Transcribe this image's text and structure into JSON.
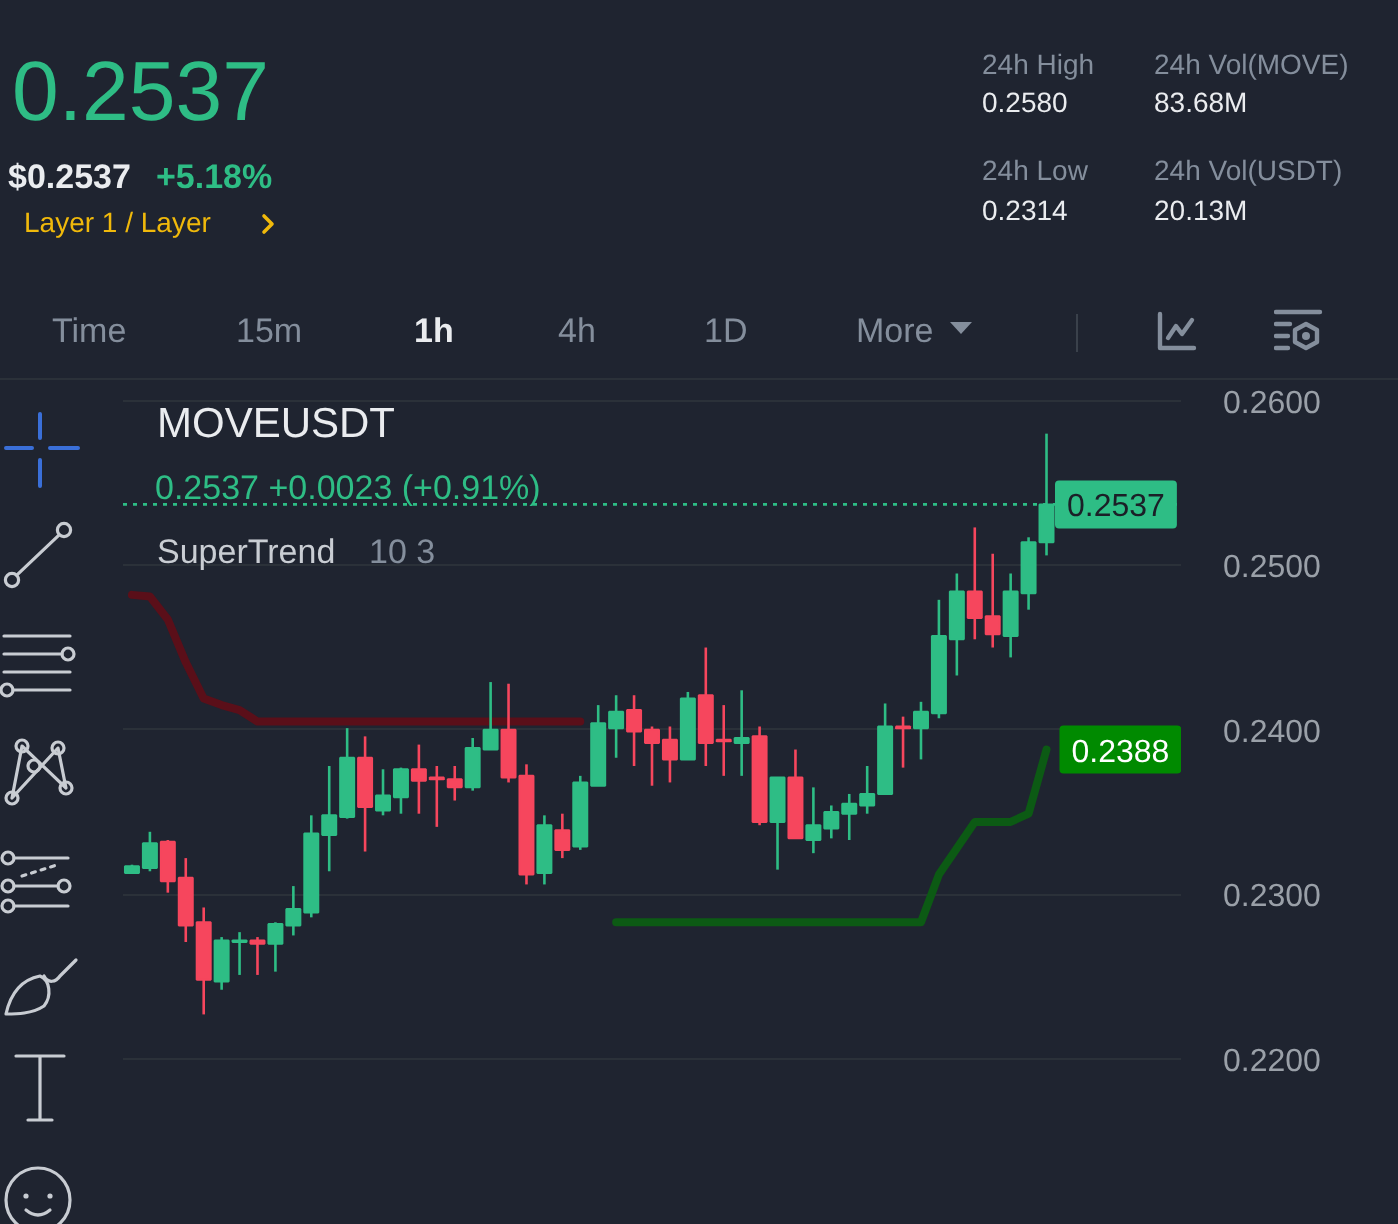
{
  "chart_data": {
    "type": "candlestick",
    "title": "MOVEUSDT",
    "subtitle": "0.2537 +0.0023 (+0.91%)",
    "categories": [
      null,
      null,
      null,
      null,
      null,
      null,
      null,
      null,
      null,
      null,
      null,
      null,
      null,
      null,
      null,
      null,
      null,
      null,
      null,
      null,
      null,
      null,
      null,
      null,
      null,
      null,
      null,
      null,
      null,
      null,
      null,
      null,
      null,
      null,
      null,
      null,
      null,
      null,
      null,
      null,
      null,
      null,
      null,
      null,
      null,
      null,
      null,
      null,
      null,
      null,
      null,
      null,
      null,
      null,
      null,
      null,
      null,
      null,
      null
    ],
    "ohlc": [
      [
        0.2313,
        0.2318,
        0.2313,
        0.2317
      ],
      [
        0.2316,
        0.2338,
        0.2314,
        0.2331
      ],
      [
        0.2332,
        0.2333,
        0.2301,
        0.2308
      ],
      [
        0.231,
        0.2322,
        0.2271,
        0.2281
      ],
      [
        0.2283,
        0.2292,
        0.2227,
        0.2248
      ],
      [
        0.2247,
        0.2274,
        0.2242,
        0.2272
      ],
      [
        0.2271,
        0.2277,
        0.2251,
        0.2272
      ],
      [
        0.2272,
        0.2274,
        0.2251,
        0.227
      ],
      [
        0.227,
        0.2283,
        0.2253,
        0.2282
      ],
      [
        0.2281,
        0.2305,
        0.2275,
        0.2291
      ],
      [
        0.2289,
        0.2348,
        0.2286,
        0.2337
      ],
      [
        0.2336,
        0.2378,
        0.2314,
        0.2348
      ],
      [
        0.2347,
        0.2401,
        0.2346,
        0.2383
      ],
      [
        0.2383,
        0.2396,
        0.2326,
        0.2353
      ],
      [
        0.2351,
        0.2376,
        0.2348,
        0.236
      ],
      [
        0.2359,
        0.2377,
        0.2349,
        0.2376
      ],
      [
        0.2376,
        0.2391,
        0.2349,
        0.2369
      ],
      [
        0.2371,
        0.2378,
        0.2341,
        0.237
      ],
      [
        0.237,
        0.2378,
        0.2357,
        0.2365
      ],
      [
        0.2365,
        0.2395,
        0.2363,
        0.2389
      ],
      [
        0.2388,
        0.2429,
        0.2388,
        0.24
      ],
      [
        0.24,
        0.2428,
        0.2368,
        0.2371
      ],
      [
        0.2372,
        0.2379,
        0.2306,
        0.2312
      ],
      [
        0.2313,
        0.2348,
        0.2306,
        0.2342
      ],
      [
        0.2339,
        0.2349,
        0.2322,
        0.2327
      ],
      [
        0.2329,
        0.2372,
        0.2327,
        0.2368
      ],
      [
        0.2366,
        0.2415,
        0.2366,
        0.2404
      ],
      [
        0.2401,
        0.2421,
        0.2383,
        0.2411
      ],
      [
        0.2412,
        0.2421,
        0.2378,
        0.2399
      ],
      [
        0.24,
        0.2402,
        0.2366,
        0.2392
      ],
      [
        0.2394,
        0.2402,
        0.2368,
        0.2382
      ],
      [
        0.2382,
        0.2423,
        0.2382,
        0.2419
      ],
      [
        0.2421,
        0.245,
        0.2378,
        0.2392
      ],
      [
        0.2394,
        0.2415,
        0.2372,
        0.2393
      ],
      [
        0.2392,
        0.2424,
        0.2372,
        0.2395
      ],
      [
        0.2396,
        0.2402,
        0.2342,
        0.2344
      ],
      [
        0.2344,
        0.2371,
        0.2315,
        0.2371
      ],
      [
        0.2371,
        0.2388,
        0.2334,
        0.2334
      ],
      [
        0.2333,
        0.2365,
        0.2325,
        0.2342
      ],
      [
        0.234,
        0.2354,
        0.2334,
        0.235
      ],
      [
        0.2349,
        0.2361,
        0.2333,
        0.2355
      ],
      [
        0.2354,
        0.2378,
        0.2349,
        0.2361
      ],
      [
        0.2361,
        0.2416,
        0.2361,
        0.2402
      ],
      [
        0.2402,
        0.2408,
        0.2377,
        0.2401
      ],
      [
        0.2401,
        0.2417,
        0.2382,
        0.2411
      ],
      [
        0.241,
        0.2479,
        0.2407,
        0.2457
      ],
      [
        0.2455,
        0.2495,
        0.2433,
        0.2484
      ],
      [
        0.2484,
        0.2523,
        0.2455,
        0.2468
      ],
      [
        0.2469,
        0.2507,
        0.245,
        0.2458
      ],
      [
        0.2457,
        0.2495,
        0.2444,
        0.2484
      ],
      [
        0.2483,
        0.2517,
        0.2473,
        0.2514
      ],
      [
        0.2514,
        0.258,
        0.2506,
        0.2537
      ],
      null,
      null,
      null,
      null,
      null,
      null,
      null
    ],
    "colors": [
      "#2ebd85",
      "#2ebd85",
      "#f6465d",
      "#f6465d",
      "#f6465d",
      "#2ebd85",
      "#2ebd85",
      "#f6465d",
      "#2ebd85",
      "#2ebd85",
      "#2ebd85",
      "#2ebd85",
      "#2ebd85",
      "#f6465d",
      "#2ebd85",
      "#2ebd85",
      "#f6465d",
      "#f6465d",
      "#f6465d",
      "#2ebd85",
      "#2ebd85",
      "#f6465d",
      "#f6465d",
      "#2ebd85",
      "#f6465d",
      "#2ebd85",
      "#2ebd85",
      "#2ebd85",
      "#f6465d",
      "#f6465d",
      "#f6465d",
      "#2ebd85",
      "#f6465d",
      "#f6465d",
      "#2ebd85",
      "#f6465d",
      "#2ebd85",
      "#f6465d",
      "#2ebd85",
      "#2ebd85",
      "#2ebd85",
      "#2ebd85",
      "#2ebd85",
      "#f6465d",
      "#2ebd85",
      "#2ebd85",
      "#2ebd85",
      "#f6465d",
      "#f6465d",
      "#2ebd85",
      "#2ebd85",
      "#2ebd85",
      null,
      null,
      null,
      null,
      null,
      null,
      null
    ],
    "series": [
      {
        "type": "line",
        "color": "#5a0f19",
        "values": [
          0.2482,
          0.2481,
          0.2467,
          0.2441,
          0.2419,
          0.2415,
          0.2412,
          0.2405,
          0.2405,
          0.2405,
          0.2405,
          0.2405,
          0.2405,
          0.2405,
          0.2405,
          0.2405,
          0.2405,
          0.2405,
          0.2405,
          0.2405,
          0.2405,
          0.2405,
          0.2405,
          0.2405,
          0.2405,
          0.2405,
          null,
          null,
          null,
          null,
          null,
          null,
          null,
          null,
          null,
          null,
          null,
          null,
          null,
          null,
          null,
          null,
          null,
          null,
          null,
          null,
          null,
          null,
          null,
          null,
          null,
          null,
          null,
          null,
          null,
          null,
          null,
          null,
          null
        ]
      },
      {
        "type": "line",
        "color": "#0c5a14",
        "values": [
          null,
          null,
          null,
          null,
          null,
          null,
          null,
          null,
          null,
          null,
          null,
          null,
          null,
          null,
          null,
          null,
          null,
          null,
          null,
          null,
          null,
          null,
          null,
          null,
          null,
          null,
          null,
          0.2283,
          0.2283,
          0.2283,
          0.2283,
          0.2283,
          0.2283,
          0.2283,
          0.2283,
          0.2283,
          0.2283,
          0.2283,
          0.2283,
          0.2283,
          0.2283,
          0.2283,
          0.2283,
          0.2283,
          0.2283,
          0.2312,
          0.2328,
          0.2344,
          0.2344,
          0.2344,
          0.2349,
          0.2388,
          null,
          null,
          null,
          null,
          null,
          null,
          null
        ],
        "value_labels": [
          null,
          null,
          null,
          null,
          null,
          null,
          null,
          null,
          null,
          null,
          null,
          null,
          null,
          null,
          null,
          null,
          null,
          null,
          null,
          null,
          null,
          null,
          null,
          null,
          null,
          null,
          null,
          null,
          null,
          null,
          null,
          null,
          null,
          null,
          null,
          null,
          null,
          null,
          null,
          null,
          null,
          null,
          null,
          null,
          null,
          null,
          null,
          null,
          null,
          null,
          null,
          "0.2388",
          null,
          null,
          null,
          null,
          null,
          null,
          null
        ]
      }
    ],
    "ylim": [
      0.2099,
      0.2612
    ],
    "yticks": [
      {
        "value": 0.22,
        "label": "0.2200"
      },
      {
        "value": 0.23,
        "label": "0.2300"
      },
      {
        "value": 0.24,
        "label": "0.2400"
      },
      {
        "value": 0.25,
        "label": "0.2500"
      },
      {
        "value": 0.26,
        "label": "0.2600"
      }
    ],
    "grid": "y",
    "tick_labels": "y",
    "ref_lines": [
      {
        "axis": "y",
        "value": 0.2537,
        "label": "0.2537",
        "color": "#2ebd85",
        "line_style": "dotted"
      }
    ],
    "annotations": [
      "0.2537",
      "$0.2537",
      "+5.18%",
      "Layer 1 / Layer",
      "24h High",
      "0.2580",
      "24h Low",
      "0.2314",
      "24h Vol(MOVE)",
      "83.68M",
      "24h Vol(USDT)",
      "20.13M",
      "Time",
      "15m",
      "1h",
      "4h",
      "1D",
      "More",
      "SuperTrend",
      "10 3"
    ]
  }
}
